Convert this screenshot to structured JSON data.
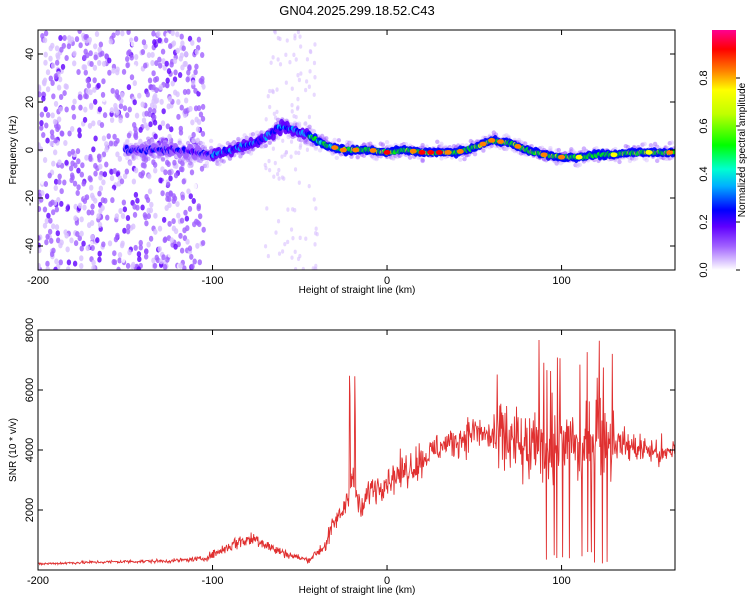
{
  "title": "GN04.2025.299.18.52.C43",
  "colors": {
    "snr_line": "#e03030",
    "frame": "#000000",
    "colormap": [
      "#ffffff",
      "#c8a8ff",
      "#8000ff",
      "#0000ff",
      "#00ffff",
      "#00ff00",
      "#ffff00",
      "#ff8000",
      "#ff0000",
      "#ff00a0"
    ]
  },
  "chart_data": [
    {
      "type": "heatmap",
      "title": "GN04.2025.299.18.52.C43",
      "xlabel": "Height of straight line (km)",
      "ylabel": "Frequency (Hz)",
      "xlim": [
        -200,
        165
      ],
      "ylim": [
        -50,
        50
      ],
      "xticks": [
        -200,
        -100,
        0,
        100
      ],
      "yticks": [
        -40,
        -20,
        0,
        20,
        40
      ],
      "colorbar": {
        "label": "Normalized spectral amplitude",
        "range": [
          0,
          1
        ],
        "ticks": [
          0.0,
          0.2,
          0.4,
          0.6,
          0.8
        ]
      },
      "ridge": {
        "x": [
          -145,
          -120,
          -100,
          -90,
          -80,
          -70,
          -60,
          -52,
          -45,
          -35,
          -25,
          -10,
          0,
          10,
          20,
          30,
          40,
          50,
          60,
          70,
          80,
          90,
          100,
          110,
          120,
          130,
          140,
          150,
          160,
          165
        ],
        "y": [
          0,
          0,
          -2,
          0,
          2,
          5,
          10,
          8,
          6,
          2,
          0,
          0,
          -1,
          0,
          -1,
          -1,
          -1,
          1,
          4,
          3,
          0,
          -2,
          -3,
          -3,
          -2,
          -2,
          -1,
          -1,
          -1,
          -1
        ]
      }
    },
    {
      "type": "line",
      "xlabel": "Height of straight line (km)",
      "ylabel": "SNR (10 * v/v)",
      "xlim": [
        -200,
        165
      ],
      "ylim": [
        0,
        8000
      ],
      "xticks": [
        -200,
        -100,
        0,
        100
      ],
      "yticks": [
        2000,
        4000,
        6000,
        8000
      ],
      "series": [
        {
          "name": "SNR",
          "x": [
            -200,
            -175,
            -150,
            -125,
            -105,
            -95,
            -85,
            -75,
            -65,
            -55,
            -45,
            -35,
            -30,
            -25,
            -20,
            -15,
            -10,
            -5,
            0,
            10,
            20,
            30,
            40,
            50,
            60,
            70,
            80,
            90,
            95,
            100,
            105,
            110,
            115,
            120,
            130,
            140,
            150,
            160,
            165
          ],
          "y": [
            200,
            250,
            280,
            300,
            380,
            650,
            950,
            1050,
            700,
            480,
            330,
            850,
            1600,
            2000,
            3100,
            1900,
            2700,
            2800,
            3000,
            3300,
            3700,
            4100,
            4300,
            4650,
            4400,
            4350,
            3900,
            4100,
            4000,
            3900,
            4700,
            3700,
            4300,
            4600,
            4300,
            4100,
            4000,
            3800,
            4100
          ]
        }
      ]
    }
  ]
}
